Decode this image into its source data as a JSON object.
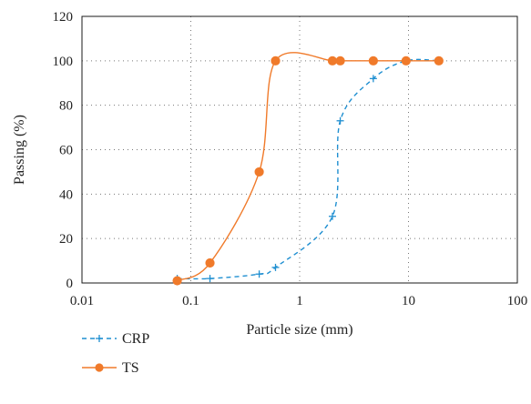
{
  "chart_data": {
    "type": "scatter",
    "xlabel": "Particle size (mm)",
    "ylabel": "Passing (%)",
    "x_scale": "log",
    "xlim": [
      0.01,
      100
    ],
    "ylim": [
      0,
      120
    ],
    "x_ticks": [
      0.01,
      0.1,
      1,
      10,
      100
    ],
    "x_tick_labels": [
      "0.01",
      "0.1",
      "1",
      "10",
      "100"
    ],
    "y_ticks": [
      0,
      20,
      40,
      60,
      80,
      100,
      120
    ],
    "y_tick_labels": [
      "0",
      "20",
      "40",
      "60",
      "80",
      "100",
      "120"
    ],
    "grid": "dotted",
    "legend_position": "bottom-left",
    "series": [
      {
        "name": "CRP",
        "color": "#1f8fd1",
        "line_style": "dashed",
        "marker": "plus",
        "x": [
          0.075,
          0.15,
          0.425,
          0.6,
          2,
          2.36,
          4.75,
          9.5,
          19
        ],
        "y": [
          2,
          2,
          4,
          7,
          30,
          73,
          92,
          100,
          100
        ]
      },
      {
        "name": "TS",
        "color": "#f07a2a",
        "line_style": "solid",
        "marker": "circle",
        "x": [
          0.075,
          0.15,
          0.425,
          0.6,
          2,
          2.36,
          4.75,
          9.5,
          19
        ],
        "y": [
          1,
          9,
          50,
          100,
          100,
          100,
          100,
          100,
          100
        ]
      }
    ]
  }
}
